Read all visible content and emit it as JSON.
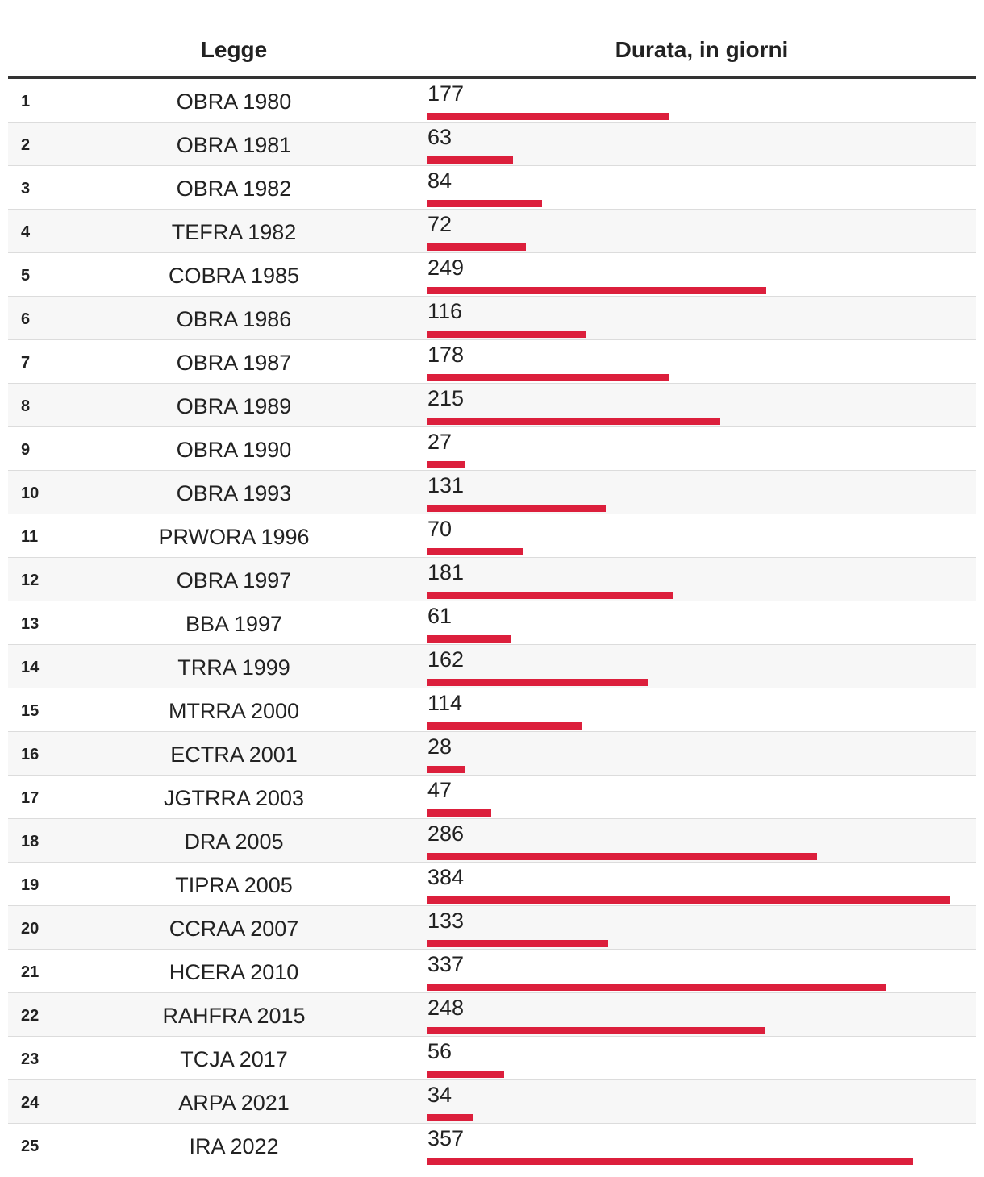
{
  "header": {
    "law_label": "Legge",
    "duration_label": "Durata, in giorni"
  },
  "colors": {
    "bar": "#dc1f3c"
  },
  "chart_data": {
    "type": "bar",
    "orientation": "horizontal",
    "categories": [
      "OBRA 1980",
      "OBRA 1981",
      "OBRA 1982",
      "TEFRA 1982",
      "COBRA 1985",
      "OBRA 1986",
      "OBRA 1987",
      "OBRA 1989",
      "OBRA 1990",
      "OBRA 1993",
      "PRWORA 1996",
      "OBRA 1997",
      "BBA 1997",
      "TRRA 1999",
      "MTRRA 2000",
      "ECTRA 2001",
      "JGTRRA 2003",
      "DRA 2005",
      "TIPRA 2005",
      "CCRAA 2007",
      "HCERA 2010",
      "RAHFRA 2015",
      "TCJA 2017",
      "ARPA 2021",
      "IRA 2022"
    ],
    "values": [
      177,
      63,
      84,
      72,
      249,
      116,
      178,
      215,
      27,
      131,
      70,
      181,
      61,
      162,
      114,
      28,
      47,
      286,
      384,
      133,
      337,
      248,
      56,
      34,
      357
    ],
    "ranks": [
      "1",
      "2",
      "3",
      "4",
      "5",
      "6",
      "7",
      "8",
      "9",
      "10",
      "11",
      "12",
      "13",
      "14",
      "15",
      "16",
      "17",
      "18",
      "19",
      "20",
      "21",
      "22",
      "23",
      "24",
      "25"
    ],
    "title": "",
    "xlabel": "",
    "ylabel": "",
    "xlim": [
      0,
      384
    ]
  }
}
